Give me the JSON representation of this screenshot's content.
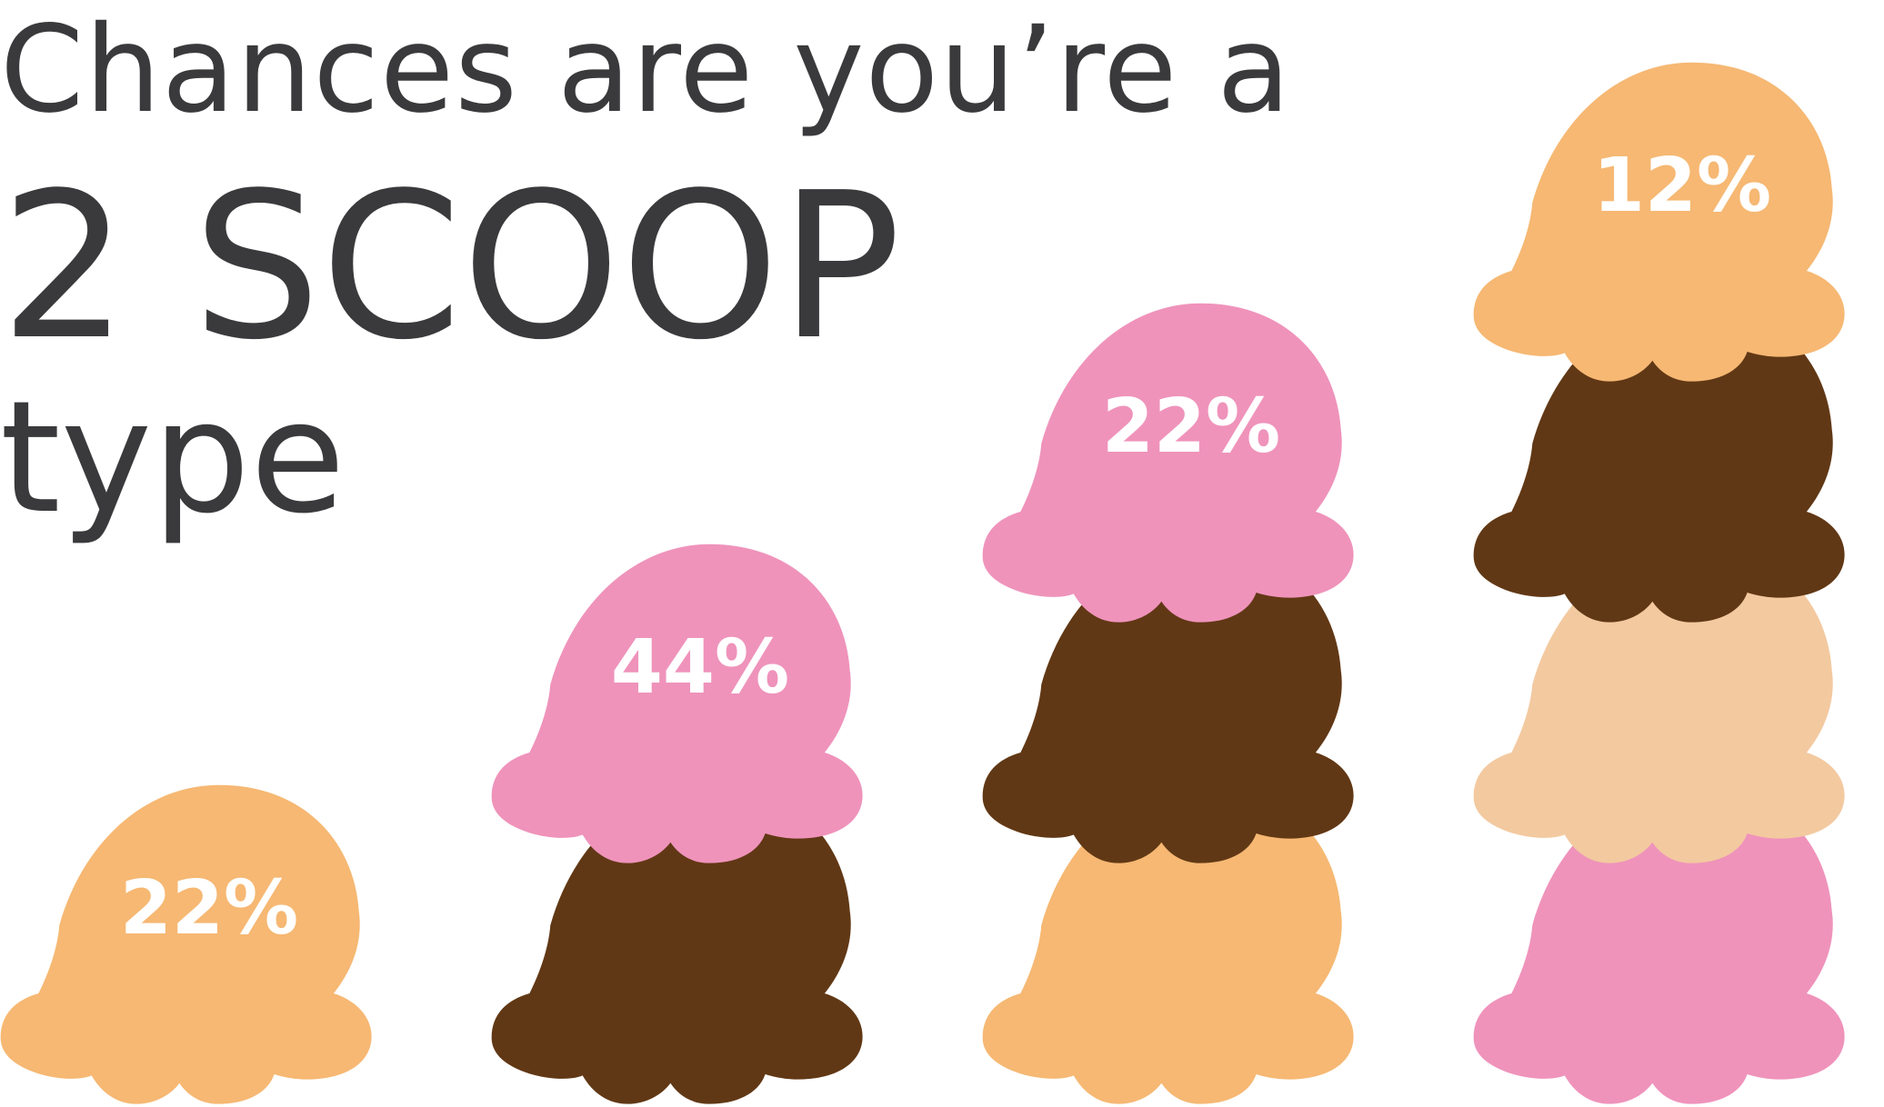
{
  "headline": {
    "line1": "Chances are you’re a",
    "line2": "2 SCOOP",
    "line3": "type"
  },
  "colors": {
    "text": "#3a3a3c",
    "label": "#ffffff",
    "orange": "#f6b873",
    "pink": "#ef93bb",
    "chocolate": "#613815",
    "peach": "#f3c9a0"
  },
  "chart_data": {
    "type": "bar",
    "categories": [
      "1 scoop",
      "2 scoops",
      "3 scoops",
      "4 scoops"
    ],
    "values": [
      22,
      44,
      22,
      12
    ],
    "value_labels": [
      "22%",
      "44%",
      "22%",
      "12%"
    ],
    "unit": "%",
    "scoop_flavors": [
      [
        "orange"
      ],
      [
        "chocolate",
        "pink"
      ],
      [
        "orange",
        "chocolate",
        "pink"
      ],
      [
        "pink",
        "peach",
        "chocolate",
        "orange"
      ]
    ],
    "title": "",
    "xlabel": "",
    "ylabel": ""
  }
}
